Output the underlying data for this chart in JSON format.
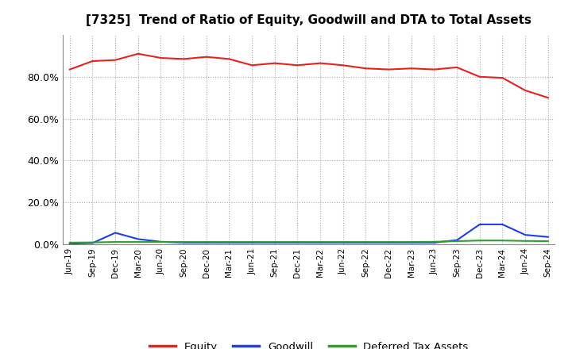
{
  "title": "[7325]  Trend of Ratio of Equity, Goodwill and DTA to Total Assets",
  "x_labels": [
    "Jun-19",
    "Sep-19",
    "Dec-19",
    "Mar-20",
    "Jun-20",
    "Sep-20",
    "Dec-20",
    "Mar-21",
    "Jun-21",
    "Sep-21",
    "Dec-21",
    "Mar-22",
    "Jun-22",
    "Sep-22",
    "Dec-22",
    "Mar-23",
    "Jun-23",
    "Sep-23",
    "Dec-23",
    "Mar-24",
    "Jun-24",
    "Sep-24"
  ],
  "equity": [
    83.5,
    87.5,
    88.0,
    91.0,
    89.0,
    88.5,
    89.5,
    88.5,
    85.5,
    86.5,
    85.5,
    86.5,
    85.5,
    84.0,
    83.5,
    84.0,
    83.5,
    84.5,
    80.0,
    79.5,
    73.5,
    70.0
  ],
  "goodwill": [
    0.3,
    0.6,
    5.5,
    2.5,
    1.2,
    0.8,
    0.8,
    0.8,
    0.8,
    0.8,
    0.8,
    0.8,
    0.8,
    0.8,
    0.8,
    0.8,
    0.8,
    2.0,
    9.5,
    9.5,
    4.5,
    3.5
  ],
  "dta": [
    0.8,
    0.9,
    1.1,
    1.1,
    1.1,
    1.1,
    1.1,
    1.1,
    1.1,
    1.1,
    1.1,
    1.1,
    1.1,
    1.1,
    1.1,
    1.1,
    1.2,
    1.5,
    1.8,
    1.8,
    1.6,
    1.5
  ],
  "equity_color": "#e8211d",
  "goodwill_color": "#1f3de8",
  "dta_color": "#2ca02c",
  "line_width": 1.5,
  "ylim": [
    0,
    100
  ],
  "yticks": [
    0,
    20,
    40,
    60,
    80
  ],
  "ytick_labels": [
    "0.0%",
    "20.0%",
    "40.0%",
    "60.0%",
    "80.0%"
  ],
  "grid_color": "#aaaaaa",
  "background_color": "#ffffff",
  "legend_labels": [
    "Equity",
    "Goodwill",
    "Deferred Tax Assets"
  ]
}
